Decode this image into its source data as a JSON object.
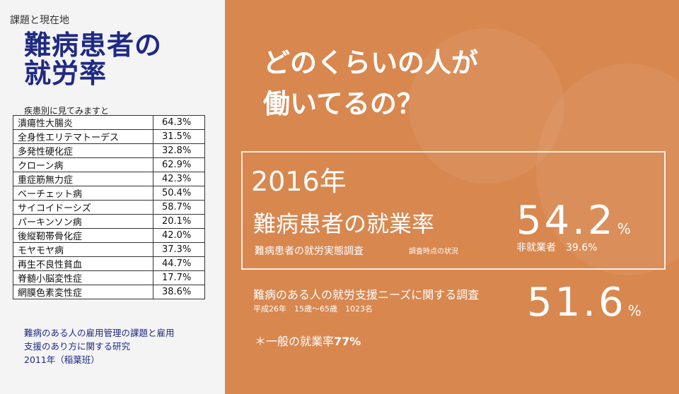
{
  "header": {
    "breadcrumb": "課題と現在地",
    "title_line1": "難病患者の",
    "title_line2": "就労率",
    "subtitle": "疾患別に見てみますと"
  },
  "diseases": [
    {
      "name": "潰瘍性大腸炎",
      "rate": "64.3%"
    },
    {
      "name": "全身性エリテマトーデス",
      "rate": "31.5%"
    },
    {
      "name": "多発性硬化症",
      "rate": "32.8%"
    },
    {
      "name": "クローン病",
      "rate": "62.9%"
    },
    {
      "name": "重症筋無力症",
      "rate": "42.3%"
    },
    {
      "name": "ベーチェット病",
      "rate": "50.4%"
    },
    {
      "name": "サイコイドーシズ",
      "rate": "58.7%"
    },
    {
      "name": "パーキンソン病",
      "rate": "20.1%"
    },
    {
      "name": "後縦靭帯骨化症",
      "rate": "42.0%"
    },
    {
      "name": "モヤモヤ病",
      "rate": "37.3%"
    },
    {
      "name": "再生不良性貧血",
      "rate": "44.7%"
    },
    {
      "name": "脊髄小脳変性症",
      "rate": "17.7%"
    },
    {
      "name": "網膜色素変性症",
      "rate": "38.6%"
    }
  ],
  "source": {
    "line1": "難病のある人の雇用管理の課題と雇用",
    "line2": "支援のあり方に関する研究",
    "line3": "2011年（稲葉班）"
  },
  "right": {
    "question_line1": "どのくらいの人が",
    "question_line2": "働いてるの？",
    "year": "2016年",
    "rate_label": "難病患者の就業率",
    "survey_name": "難病患者の就労実態調査",
    "survey_note": "調査時点の状況",
    "rate_value": "54.2",
    "percent_sign": "%",
    "unemployed": "非就業者　39.6%",
    "survey2_name": "難病のある人の就労支援ニーズに関する調査",
    "survey2_meta": "平成26年　15歳～65歳　1023名",
    "rate2_value": "51.6",
    "general_prefix": "＊一般の就業率",
    "general_value": "77%"
  },
  "colors": {
    "accent_orange": "#d8874f",
    "title_navy": "#1f2a84"
  }
}
